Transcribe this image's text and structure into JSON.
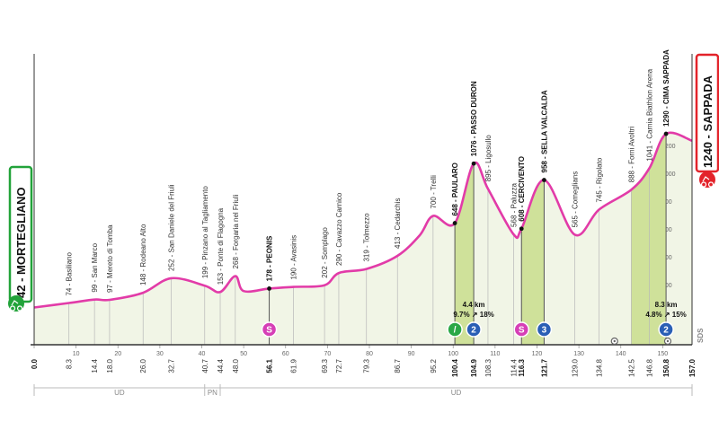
{
  "colors": {
    "profile_line": "#e23ba8",
    "climb_fill": "#cfe19a",
    "base_fill": "#f1f5e6",
    "start_green": "#22a33a",
    "finish_red": "#e3232a",
    "sprint_pink": "#d63fb6",
    "kom_blue": "#2a5fb5",
    "kom_green": "#2aa846"
  },
  "start_label": "42 - MORTEGLIANO",
  "finish_label": "1240 - SAPPADA",
  "icons": {
    "start": "cyclist-icon",
    "finish": "cyclist-icon"
  },
  "chart_data": {
    "type": "area",
    "title": "",
    "xlabel": "",
    "ylabel": "",
    "xlim": [
      0,
      157
    ],
    "ylim": [
      0,
      1300
    ],
    "km_ticks": [
      0,
      10,
      20,
      30,
      40,
      50,
      60,
      70,
      80,
      90,
      100,
      110,
      120,
      130,
      140,
      150
    ],
    "alt_ticks": [
      200,
      400,
      600,
      800,
      1000,
      1200
    ],
    "profile": [
      [
        0,
        42
      ],
      [
        8.3,
        74
      ],
      [
        14.4,
        99
      ],
      [
        18.0,
        97
      ],
      [
        26.0,
        148
      ],
      [
        32.7,
        252
      ],
      [
        40.7,
        199
      ],
      [
        44.4,
        153
      ],
      [
        48.0,
        268
      ],
      [
        50.0,
        160
      ],
      [
        56.1,
        178
      ],
      [
        61.9,
        190
      ],
      [
        69.3,
        202
      ],
      [
        72.7,
        290
      ],
      [
        79.3,
        319
      ],
      [
        86.7,
        413
      ],
      [
        92,
        560
      ],
      [
        95.2,
        700
      ],
      [
        100.4,
        648
      ],
      [
        104.9,
        1076
      ],
      [
        108.3,
        895
      ],
      [
        114.4,
        568
      ],
      [
        116.3,
        608
      ],
      [
        121.7,
        958
      ],
      [
        129.0,
        565
      ],
      [
        134.8,
        745
      ],
      [
        142.5,
        888
      ],
      [
        146.8,
        1041
      ],
      [
        150.8,
        1290
      ],
      [
        157.0,
        1240
      ]
    ],
    "climbs": [
      [
        100.4,
        104.9
      ],
      [
        116.3,
        121.7
      ],
      [
        142.5,
        150.8
      ]
    ],
    "waypoints": [
      {
        "km": 8.3,
        "alt": 74,
        "label": "74 - Basiliano",
        "km_label": "8.3",
        "bold": false
      },
      {
        "km": 14.4,
        "alt": 99,
        "label": "99 - San Marco",
        "km_label": "14.4",
        "bold": false
      },
      {
        "km": 18.0,
        "alt": 97,
        "label": "97 - Mereto di Tomba",
        "km_label": "18.0",
        "bold": false
      },
      {
        "km": 26.0,
        "alt": 148,
        "label": "148 - Rodeano Alto",
        "km_label": "26.0",
        "bold": false
      },
      {
        "km": 32.7,
        "alt": 252,
        "label": "252 - San Daniele del Friuli",
        "km_label": "32.7",
        "bold": false
      },
      {
        "km": 40.7,
        "alt": 199,
        "label": "199 - Pinzano al Tagliamento",
        "km_label": "40.7",
        "bold": false
      },
      {
        "km": 44.4,
        "alt": 153,
        "label": "153 - Ponte di Flagogna",
        "km_label": "44.4",
        "bold": false
      },
      {
        "km": 48.0,
        "alt": 268,
        "label": "268 - Forgaria nel Friuli",
        "km_label": "48.0",
        "bold": false
      },
      {
        "km": 56.1,
        "alt": 178,
        "label": "178 - PEONIS",
        "km_label": "56.1",
        "bold": true
      },
      {
        "km": 61.9,
        "alt": 190,
        "label": "190 - Avasinis",
        "km_label": "61.9",
        "bold": false
      },
      {
        "km": 69.3,
        "alt": 202,
        "label": "202 - Somplago",
        "km_label": "69.3",
        "bold": false
      },
      {
        "km": 72.7,
        "alt": 290,
        "label": "290 - Cavazzo Carnico",
        "km_label": "72.7",
        "bold": false
      },
      {
        "km": 79.3,
        "alt": 319,
        "label": "319 - Tolmezzo",
        "km_label": "79.3",
        "bold": false
      },
      {
        "km": 86.7,
        "alt": 413,
        "label": "413 - Cedarchis",
        "km_label": "86.7",
        "bold": false
      },
      {
        "km": 95.2,
        "alt": 700,
        "label": "700 - Trelli",
        "km_label": "95.2",
        "bold": false
      },
      {
        "km": 100.4,
        "alt": 648,
        "label": "648 - PAULARO",
        "km_label": "100.4",
        "bold": true
      },
      {
        "km": 104.9,
        "alt": 1076,
        "label": "1076 - PASSO DURON",
        "km_label": "104.9",
        "bold": true
      },
      {
        "km": 108.3,
        "alt": 895,
        "label": "895 - Ligosullo",
        "km_label": "108.3",
        "bold": false
      },
      {
        "km": 114.4,
        "alt": 568,
        "label": "568 - Paluzza",
        "km_label": "114.4",
        "bold": false
      },
      {
        "km": 116.3,
        "alt": 608,
        "label": "608 - CERCIVENTO",
        "km_label": "116.3",
        "bold": true
      },
      {
        "km": 121.7,
        "alt": 958,
        "label": "958 - SELLA VALCALDA",
        "km_label": "121.7",
        "bold": true
      },
      {
        "km": 129.0,
        "alt": 565,
        "label": "565 - Comeglians",
        "km_label": "129.0",
        "bold": false
      },
      {
        "km": 134.8,
        "alt": 745,
        "label": "745 - Rigolato",
        "km_label": "134.8",
        "bold": false
      },
      {
        "km": 142.5,
        "alt": 888,
        "label": "888 - Forni Avoltri",
        "km_label": "142.5",
        "bold": false
      },
      {
        "km": 146.8,
        "alt": 1041,
        "label": "1041 - Carnia Biathlon Arena",
        "km_label": "146.8",
        "bold": false
      },
      {
        "km": 150.8,
        "alt": 1290,
        "label": "1290 - CIMA SAPPADA",
        "km_label": "150.8",
        "bold": true
      }
    ],
    "start_km_label": "0.0",
    "finish_km_label": "157.0",
    "climb_stats": [
      {
        "km": 104.9,
        "length": "4.4 km",
        "avg": "9.7%",
        "max": "18%"
      },
      {
        "km": 150.8,
        "length": "8.3 km",
        "avg": "4.8%",
        "max": "15%"
      }
    ],
    "markers": [
      {
        "km": 56.1,
        "type": "sprint",
        "text": "S"
      },
      {
        "km": 100.4,
        "type": "green",
        "text": "/"
      },
      {
        "km": 104.9,
        "type": "kom",
        "text": "2"
      },
      {
        "km": 116.3,
        "type": "sprint",
        "text": "S"
      },
      {
        "km": 121.7,
        "type": "kom",
        "text": "3"
      },
      {
        "km": 150.8,
        "type": "kom",
        "text": "2"
      }
    ],
    "provinces": [
      {
        "label": "UD",
        "from": 0,
        "to": 40.7
      },
      {
        "label": "PN",
        "from": 40.7,
        "to": 44.4
      },
      {
        "label": "UD",
        "from": 44.4,
        "to": 157.0
      }
    ],
    "sds_label": "SDS"
  }
}
